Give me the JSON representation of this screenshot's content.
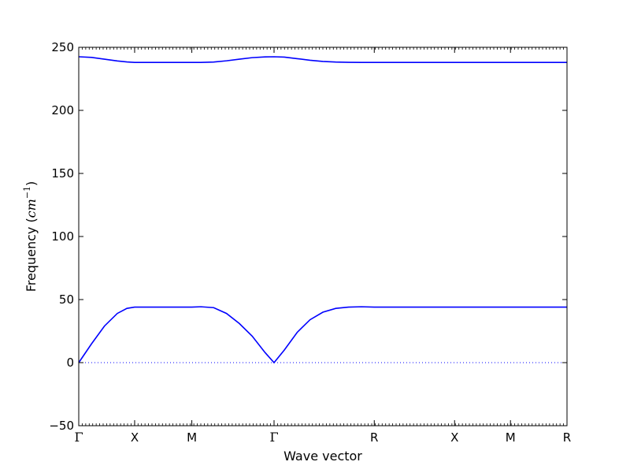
{
  "chart_data": {
    "type": "line",
    "title": "",
    "xlabel": "Wave vector",
    "ylabel_prefix": "Frequency (",
    "ylabel_math": "cm",
    "ylabel_exp": "−1",
    "ylabel_suffix": ")",
    "ylim": [
      -50,
      250
    ],
    "yticks": [
      -50,
      0,
      50,
      100,
      150,
      200,
      250
    ],
    "ytick_labels": [
      "−50",
      "0",
      "50",
      "100",
      "150",
      "200",
      "250"
    ],
    "xlim": [
      0,
      7.6
    ],
    "xticks": [
      0,
      0.87,
      1.76,
      3.04,
      4.6,
      5.85,
      6.72,
      7.6
    ],
    "xtick_labels": [
      "Γ",
      "X",
      "M",
      "Γ",
      "R",
      "X",
      "M",
      "R"
    ],
    "zero_line": {
      "y": 0,
      "style": "dotted",
      "color": "#0000ff"
    },
    "grid": false,
    "series_color": "#0000ff",
    "series": [
      {
        "x": [
          0,
          0.2,
          0.4,
          0.6,
          0.75,
          0.87,
          1.0,
          1.2,
          1.4,
          1.6,
          1.76,
          1.9,
          2.1,
          2.3,
          2.5,
          2.7,
          2.9,
          3.04,
          3.2,
          3.4,
          3.6,
          3.8,
          4.0,
          4.2,
          4.4,
          4.6,
          5.0,
          5.5,
          5.85,
          6.3,
          6.72,
          7.2,
          7.6
        ],
        "y": [
          0,
          15,
          29,
          39,
          43,
          44,
          44,
          44,
          44,
          44,
          44,
          44.3,
          43.6,
          39,
          31,
          21,
          8,
          0,
          10,
          24,
          34,
          40,
          43,
          44,
          44.3,
          44,
          44,
          44,
          44,
          44,
          44,
          44,
          44
        ]
      },
      {
        "x": [
          0,
          0.2,
          0.4,
          0.6,
          0.75,
          0.87,
          1.0,
          1.2,
          1.4,
          1.6,
          1.76,
          1.9,
          2.1,
          2.3,
          2.5,
          2.7,
          2.9,
          3.04,
          3.2,
          3.4,
          3.6,
          3.8,
          4.0,
          4.2,
          4.4,
          4.6,
          5.0,
          5.5,
          5.85,
          6.3,
          6.72,
          7.2,
          7.6
        ],
        "y": [
          242.5,
          242,
          240.6,
          239.2,
          238.4,
          238,
          238,
          238,
          238,
          238,
          238,
          238,
          238.3,
          239.3,
          240.6,
          241.8,
          242.4,
          242.5,
          242.2,
          241,
          239.7,
          238.8,
          238.3,
          238.1,
          238,
          238,
          238,
          238,
          238,
          238,
          238,
          238,
          238
        ]
      }
    ]
  }
}
